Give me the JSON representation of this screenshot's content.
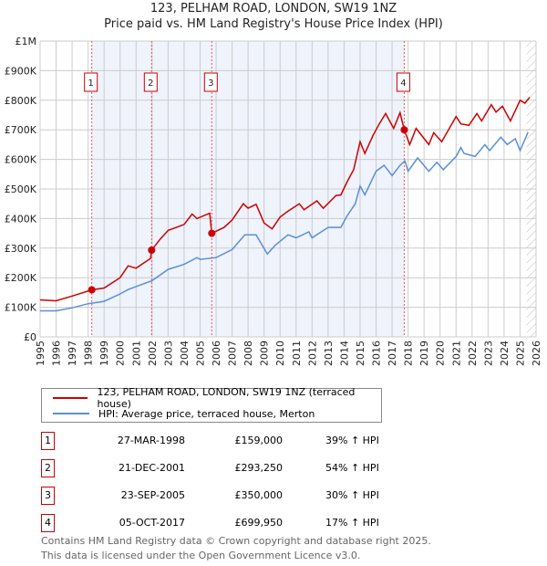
{
  "chart_data": {
    "type": "line",
    "title": "123, PELHAM ROAD, LONDON, SW19 1NZ",
    "subtitle": "Price paid vs. HM Land Registry's House Price Index (HPI)",
    "xlim": [
      1995,
      2026
    ],
    "ylim": [
      0,
      1000000
    ],
    "xticks": [
      "1995",
      "1996",
      "1997",
      "1998",
      "1999",
      "2000",
      "2001",
      "2002",
      "2003",
      "2004",
      "2005",
      "2006",
      "2007",
      "2008",
      "2009",
      "2010",
      "2011",
      "2012",
      "2013",
      "2014",
      "2015",
      "2016",
      "2017",
      "2018",
      "2019",
      "2020",
      "2021",
      "2022",
      "2023",
      "2024",
      "2025",
      "2026"
    ],
    "yticks": [
      {
        "v": 0,
        "l": "£0"
      },
      {
        "v": 100000,
        "l": "£100K"
      },
      {
        "v": 200000,
        "l": "£200K"
      },
      {
        "v": 300000,
        "l": "£300K"
      },
      {
        "v": 400000,
        "l": "£400K"
      },
      {
        "v": 500000,
        "l": "£500K"
      },
      {
        "v": 600000,
        "l": "£600K"
      },
      {
        "v": 700000,
        "l": "£700K"
      },
      {
        "v": 800000,
        "l": "£800K"
      },
      {
        "v": 900000,
        "l": "£900K"
      },
      {
        "v": 1000000,
        "l": "£1M"
      }
    ],
    "grid": true,
    "series": [
      {
        "name": "123, PELHAM ROAD, LONDON, SW19 1NZ (terraced house)",
        "color": "#cc0000",
        "x": [
          1995,
          1996,
          1997,
          1998.23,
          1999,
          2000,
          2000.5,
          2001,
          2001.9,
          2001.97,
          2002.5,
          2003,
          2004,
          2004.5,
          2004.8,
          2005.6,
          2005.73,
          2006.5,
          2007,
          2007.7,
          2008,
          2008.5,
          2009,
          2009.5,
          2010,
          2010.5,
          2011.2,
          2011.5,
          2012.3,
          2012.7,
          2013.5,
          2013.8,
          2014.2,
          2014.6,
          2015,
          2015.3,
          2015.8,
          2016.2,
          2016.6,
          2017.1,
          2017.5,
          2017.76,
          2018.1,
          2018.5,
          2019.3,
          2019.6,
          2020.1,
          2021,
          2021.3,
          2021.8,
          2022.3,
          2022.6,
          2023.2,
          2023.5,
          2023.9,
          2024.4,
          2025,
          2025.3,
          2025.6
        ],
        "y": [
          125000,
          122000,
          138000,
          159000,
          165000,
          200000,
          240000,
          232000,
          265000,
          293250,
          330000,
          360000,
          380000,
          415000,
          400000,
          418000,
          350000,
          370000,
          395000,
          450000,
          435000,
          448000,
          385000,
          365000,
          405000,
          425000,
          450000,
          430000,
          460000,
          435000,
          478000,
          480000,
          525000,
          565000,
          660000,
          620000,
          680000,
          720000,
          755000,
          705000,
          758000,
          699950,
          650000,
          705000,
          650000,
          690000,
          660000,
          745000,
          720000,
          715000,
          755000,
          730000,
          785000,
          760000,
          780000,
          730000,
          800000,
          790000,
          810000
        ]
      },
      {
        "name": "HPI: Average price, terraced house, Merton",
        "color": "#5b8fd4",
        "x": [
          1995,
          1996,
          1997,
          1998,
          1999,
          2000,
          2000.5,
          2001,
          2002,
          2003,
          2004,
          2004.8,
          2005,
          2006,
          2007,
          2007.8,
          2008.5,
          2009.2,
          2009.7,
          2010.5,
          2011,
          2011.8,
          2012,
          2013,
          2013.8,
          2014.2,
          2014.7,
          2015,
          2015.3,
          2016,
          2016.5,
          2017,
          2017.5,
          2017.8,
          2018,
          2018.6,
          2019.3,
          2019.8,
          2020.2,
          2021,
          2021.3,
          2021.5,
          2022.2,
          2022.8,
          2023.1,
          2023.8,
          2024.2,
          2024.7,
          2025,
          2025.5
        ],
        "y": [
          88000,
          88000,
          98000,
          112000,
          120000,
          145000,
          160000,
          170000,
          190000,
          228000,
          245000,
          268000,
          262000,
          268000,
          295000,
          345000,
          345000,
          280000,
          310000,
          345000,
          335000,
          355000,
          335000,
          370000,
          370000,
          410000,
          450000,
          510000,
          480000,
          560000,
          580000,
          545000,
          580000,
          595000,
          560000,
          605000,
          560000,
          590000,
          565000,
          610000,
          640000,
          620000,
          610000,
          650000,
          630000,
          675000,
          650000,
          670000,
          630000,
          692000
        ]
      }
    ],
    "sales": [
      {
        "n": "1",
        "x": 1998.23,
        "y": 159000,
        "date": "27-MAR-1998",
        "price": "£159,000",
        "hpi": "39% ↑ HPI"
      },
      {
        "n": "2",
        "x": 2001.97,
        "y": 293250,
        "date": "21-DEC-2001",
        "price": "£293,250",
        "hpi": "54% ↑ HPI"
      },
      {
        "n": "3",
        "x": 2005.73,
        "y": 350000,
        "date": "23-SEP-2005",
        "price": "£350,000",
        "hpi": "30% ↑ HPI"
      },
      {
        "n": "4",
        "x": 2017.76,
        "y": 699950,
        "date": "05-OCT-2017",
        "price": "£699,950",
        "hpi": "17% ↑ HPI"
      }
    ],
    "shaded_range": [
      1998.23,
      2017.76
    ],
    "forecast_from": 2025.4
  },
  "legend": {
    "red": "123, PELHAM ROAD, LONDON, SW19 1NZ (terraced house)",
    "blue": "HPI: Average price, terraced house, Merton"
  },
  "footer": {
    "line1": "Contains HM Land Registry data © Crown copyright and database right 2025.",
    "line2": "This data is licensed under the Open Government Licence v3.0."
  }
}
